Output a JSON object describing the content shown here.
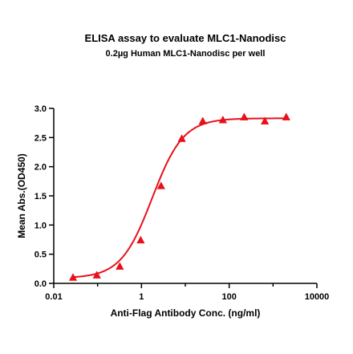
{
  "chart_data": {
    "type": "scatter",
    "title": "ELISA assay to evaluate MLC1-Nanodisc",
    "subtitle": "0.2µg Human MLC1-Nanodisc per well",
    "xlabel": "Anti-Flag Antibody Conc. (ng/ml)",
    "ylabel": "Mean Abs.(OD450)",
    "xscale": "log",
    "xlim": [
      0.01,
      10000
    ],
    "ylim": [
      0.0,
      3.0
    ],
    "x_tick_labels": [
      "0.01",
      "1",
      "100",
      "10000"
    ],
    "y_tick_labels": [
      "0.0",
      "0.5",
      "1.0",
      "1.5",
      "2.0",
      "2.5",
      "3.0"
    ],
    "grid": false,
    "legend": "none",
    "series": [
      {
        "marker": "triangle",
        "color": "#e8101b",
        "fit": "four-parameter logistic",
        "points": [
          {
            "x": 0.0275,
            "y": 0.1
          },
          {
            "x": 0.0962,
            "y": 0.14
          },
          {
            "x": 0.32,
            "y": 0.29
          },
          {
            "x": 0.96,
            "y": 0.74
          },
          {
            "x": 2.8,
            "y": 1.67
          },
          {
            "x": 8.3,
            "y": 2.48
          },
          {
            "x": 25,
            "y": 2.78
          },
          {
            "x": 72,
            "y": 2.8
          },
          {
            "x": 220,
            "y": 2.85
          },
          {
            "x": 650,
            "y": 2.78
          },
          {
            "x": 2000,
            "y": 2.85
          }
        ]
      }
    ]
  }
}
